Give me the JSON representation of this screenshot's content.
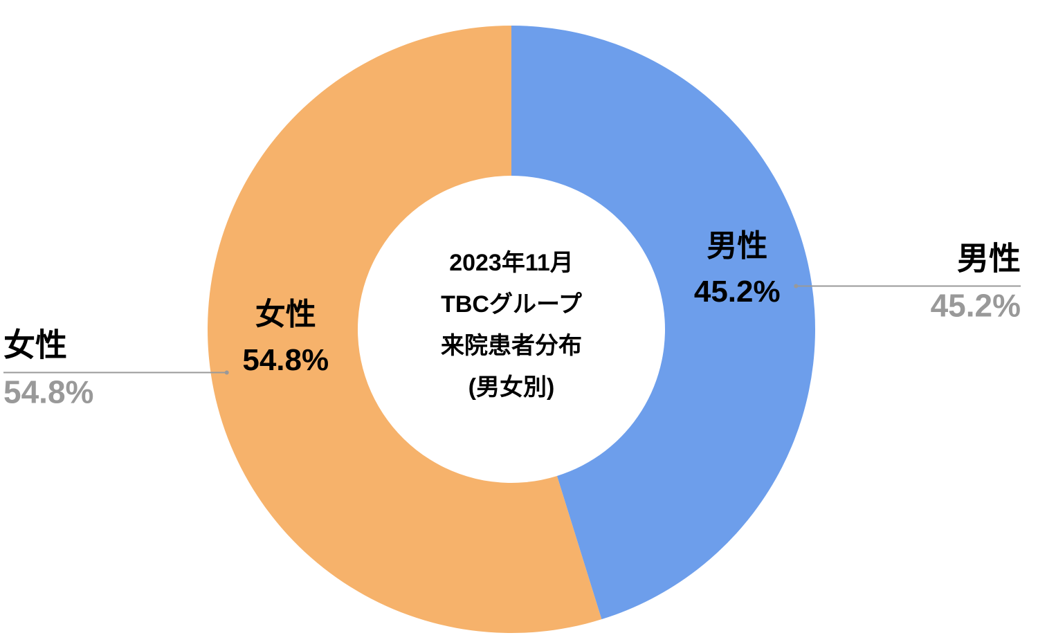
{
  "chart_data": {
    "type": "donut",
    "title": [
      "2023年11月",
      "TBCグループ",
      "来院患者分布",
      "(男女別)"
    ],
    "categories": [
      "男性",
      "女性"
    ],
    "values": [
      45.2,
      54.8
    ],
    "value_labels": [
      "45.2%",
      "54.8%"
    ],
    "colors": [
      "#6d9eeb",
      "#f6b26b"
    ]
  }
}
